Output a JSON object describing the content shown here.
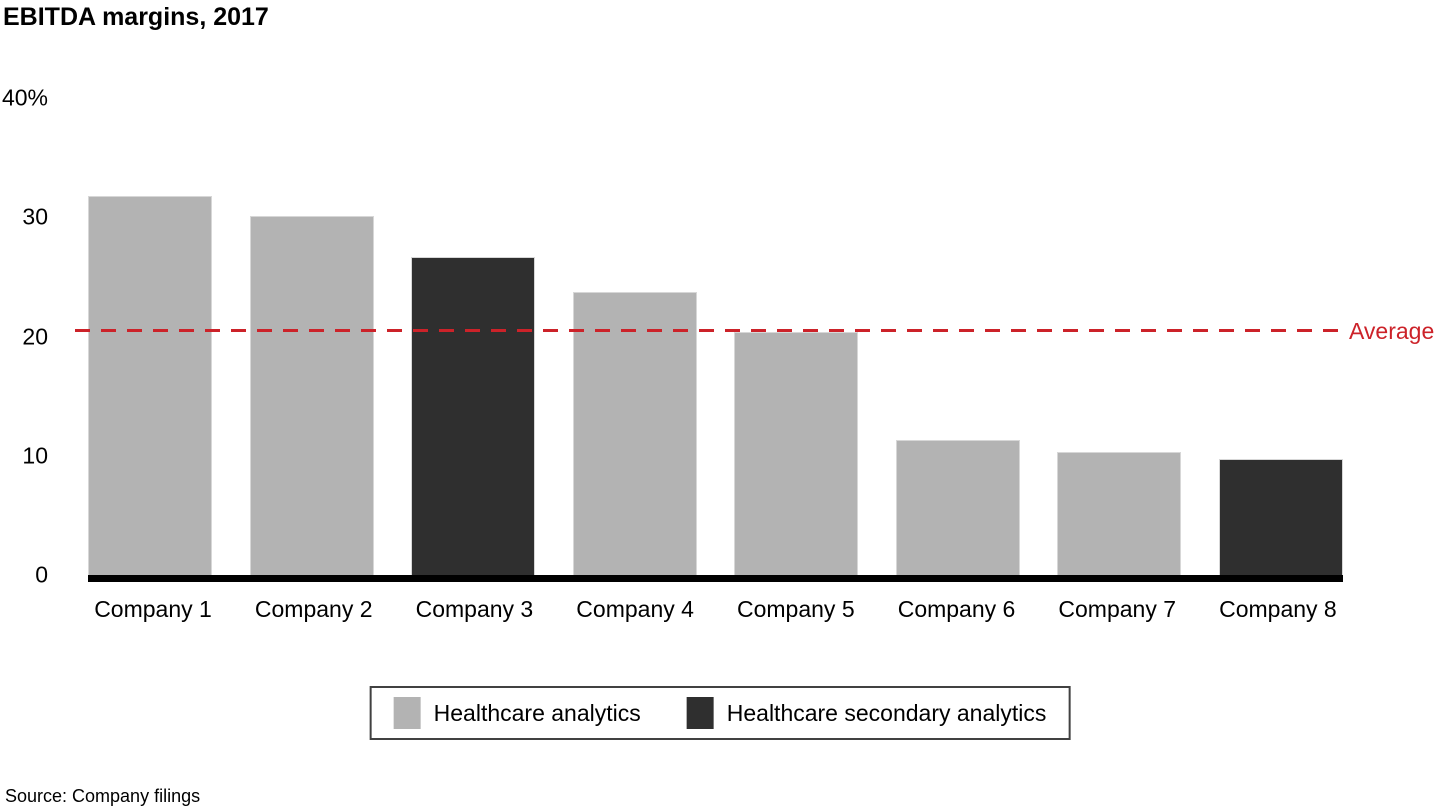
{
  "title": "EBITDA margins, 2017",
  "source_note": "Source: Company filings",
  "colors": {
    "bar_gray": "#b3b3b3",
    "bar_dark": "#2f2f2f",
    "average_red": "#cc2229",
    "axis_black": "#000000",
    "bar_edge": "#d7d7d7"
  },
  "legend": {
    "items": [
      {
        "label": "Healthcare analytics",
        "color": "#b3b3b3"
      },
      {
        "label": "Healthcare secondary analytics",
        "color": "#2f2f2f"
      }
    ]
  },
  "chart_data": {
    "type": "bar",
    "title": "EBITDA margins, 2017",
    "categories": [
      "Company 1",
      "Company 2",
      "Company 3",
      "Company 4",
      "Company 5",
      "Company 6",
      "Company 7",
      "Company 8"
    ],
    "values": [
      31.8,
      30.1,
      26.7,
      23.7,
      20.4,
      11.3,
      10.3,
      9.7
    ],
    "series_membership": [
      "Healthcare analytics",
      "Healthcare analytics",
      "Healthcare secondary analytics",
      "Healthcare analytics",
      "Healthcare analytics",
      "Healthcare analytics",
      "Healthcare analytics",
      "Healthcare secondary analytics"
    ],
    "unit": "%",
    "ylim": [
      0,
      40
    ],
    "ytick_values": [
      40,
      30,
      20,
      10,
      0
    ],
    "ytick_labels": [
      "40%",
      "30",
      "20",
      "10",
      "0"
    ],
    "average_line": {
      "value": 20.5,
      "label": "Average",
      "style": "dashed",
      "color": "#cc2229"
    },
    "xlabel": "",
    "ylabel": "",
    "grid": false,
    "legend_position": "bottom"
  }
}
